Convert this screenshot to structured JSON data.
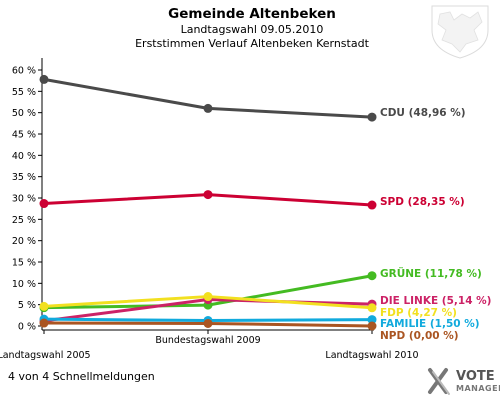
{
  "chart_data": {
    "type": "line",
    "title": "Gemeinde Altenbeken",
    "subtitle": "Landtagswahl 09.05.2010",
    "subtitle2": "Erststimmen Verlauf Altenbeken Kernstadt",
    "categories": [
      "Landtagswahl 2005",
      "Bundestagswahl 2009",
      "Landtagswahl 2010"
    ],
    "ylim": [
      0,
      60
    ],
    "yticks": [
      "0 %",
      "5 %",
      "10 %",
      "15 %",
      "20 %",
      "25 %",
      "30 %",
      "35 %",
      "40 %",
      "45 %",
      "50 %",
      "55 %",
      "60 %"
    ],
    "grid": false,
    "series": [
      {
        "name": "CDU",
        "label": "CDU (48,96 %)",
        "color": "#4a4a4a",
        "values": [
          57.8,
          51.0,
          48.96
        ]
      },
      {
        "name": "SPD",
        "label": "SPD (28,35 %)",
        "color": "#cc0033",
        "values": [
          28.7,
          30.8,
          28.35
        ]
      },
      {
        "name": "GRÜNE",
        "label": "GRÜNE (11,78 %)",
        "color": "#44bb22",
        "values": [
          4.3,
          4.9,
          11.78
        ]
      },
      {
        "name": "DIE LINKE",
        "label": "DIE LINKE (5,14 %)",
        "color": "#cc2266",
        "values": [
          1.2,
          6.2,
          5.14
        ]
      },
      {
        "name": "FDP",
        "label": "FDP (4,27 %)",
        "color": "#f2e020",
        "values": [
          4.6,
          6.9,
          4.27
        ]
      },
      {
        "name": "FAMILIE",
        "label": "FAMILIE (1,50 %)",
        "color": "#11aadd",
        "values": [
          1.6,
          1.3,
          1.5
        ]
      },
      {
        "name": "NPD",
        "label": "NPD (0,00 %)",
        "color": "#aa5522",
        "values": [
          0.7,
          0.6,
          0.0
        ]
      }
    ]
  },
  "footer": "4 von 4 Schnellmeldungen",
  "logo": {
    "line1": "VOTE",
    "line2": "MANAGER"
  }
}
